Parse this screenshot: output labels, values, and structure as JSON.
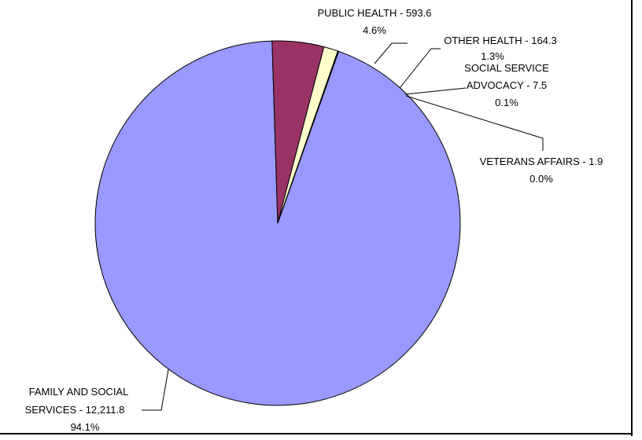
{
  "chart_data": {
    "type": "pie",
    "title": "",
    "slices": [
      {
        "name": "FAMILY AND SOCIAL SERVICES",
        "value": 12211.8,
        "value_label": "12,211.8",
        "percent_label": "94.1%",
        "color": "#9999FF"
      },
      {
        "name": "PUBLIC HEALTH",
        "value": 593.6,
        "value_label": "593.6",
        "percent_label": "4.6%",
        "color": "#993366"
      },
      {
        "name": "OTHER HEALTH",
        "value": 164.3,
        "value_label": "164.3",
        "percent_label": "1.3%",
        "color": "#FFFFCC"
      },
      {
        "name": "SOCIAL SERVICE ADVOCACY",
        "value": 7.5,
        "value_label": "7.5",
        "percent_label": "0.1%",
        "color": "#CCFFFF"
      },
      {
        "name": "VETERANS AFFAIRS",
        "value": 1.9,
        "value_label": "1.9",
        "percent_label": "0.0%",
        "color": "#FF8080"
      }
    ],
    "labels": {
      "public_health": {
        "line1": "PUBLIC HEALTH - 593.6",
        "line2": "4.6%"
      },
      "other_health": {
        "line1": "OTHER HEALTH - 164.3",
        "line2": "1.3%"
      },
      "social_service_advocacy": {
        "line1": "SOCIAL SERVICE",
        "line2": "ADVOCACY - 7.5",
        "line3": "0.1%"
      },
      "veterans_affairs": {
        "line1": "VETERANS AFFAIRS - 1.9",
        "line2": "0.0%"
      },
      "family_social": {
        "line1": "FAMILY AND SOCIAL",
        "line2": "SERVICES - 12,211.8",
        "line3": "94.1%"
      }
    }
  }
}
